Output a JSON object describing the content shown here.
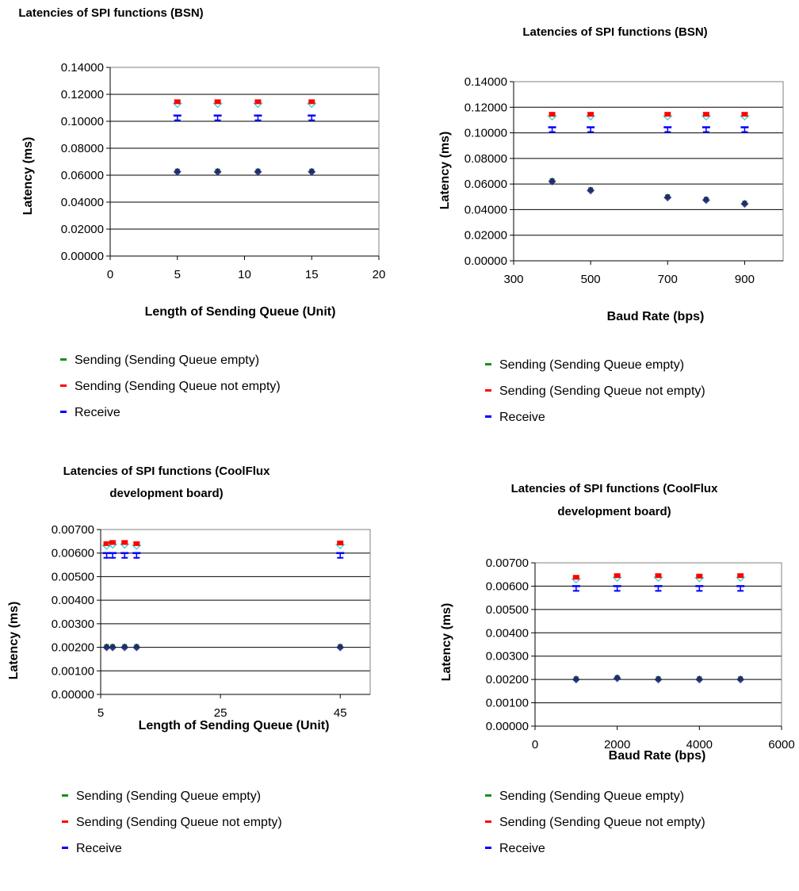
{
  "series_style": {
    "sending_empty": {
      "label": "Sending (Sending Queue empty)",
      "color": "#1a8f1a",
      "marker": "diamond"
    },
    "sending_not_empty": {
      "label": "Sending (Sending Queue not empty)",
      "color": "#ff0000",
      "marker": "square"
    },
    "receive": {
      "label": "Receive",
      "color": "#0000ff",
      "marker": "dash"
    },
    "error_bar_color": "#33cccc"
  },
  "chart_data": [
    {
      "type": "scatter",
      "title": "Latencies of SPI functions (BSN)",
      "xlabel": "Length of Sending Queue (Unit)",
      "ylabel": "Latency (ms)",
      "xlim": [
        0,
        20
      ],
      "xticks": [
        "0",
        "5",
        "10",
        "15",
        "20"
      ],
      "ylim": [
        0,
        0.14
      ],
      "yticks": [
        "0.00000",
        "0.02000",
        "0.04000",
        "0.06000",
        "0.08000",
        "0.10000",
        "0.12000",
        "0.14000"
      ],
      "grid": "horizontal",
      "legend": "bottom",
      "x": [
        5,
        8,
        11,
        15
      ],
      "series": [
        {
          "name": "Sending (Sending Queue empty)",
          "values": [
            0.0625,
            0.0625,
            0.0625,
            0.0625
          ]
        },
        {
          "name": "Sending (Sending Queue not empty)",
          "values": [
            0.1145,
            0.1145,
            0.1145,
            0.1145
          ]
        },
        {
          "name": "Receive",
          "values": [
            0.1025,
            0.1025,
            0.1025,
            0.1025
          ]
        }
      ]
    },
    {
      "type": "scatter",
      "title": "Latencies of SPI functions (BSN)",
      "xlabel": "Baud Rate (bps)",
      "ylabel": "Latency (ms)",
      "xlim": [
        300,
        1000
      ],
      "xticks": [
        "300",
        "500",
        "700",
        "900"
      ],
      "ylim": [
        0,
        0.14
      ],
      "yticks": [
        "0.00000",
        "0.02000",
        "0.04000",
        "0.06000",
        "0.08000",
        "0.10000",
        "0.12000",
        "0.14000"
      ],
      "grid": "horizontal",
      "legend": "bottom",
      "x": [
        400,
        500,
        700,
        800,
        900
      ],
      "series": [
        {
          "name": "Sending (Sending Queue empty)",
          "values": [
            0.062,
            0.055,
            0.0495,
            0.0475,
            0.0445
          ]
        },
        {
          "name": "Sending (Sending Queue not empty)",
          "values": [
            0.1145,
            0.1145,
            0.1145,
            0.1145,
            0.1145
          ]
        },
        {
          "name": "Receive",
          "values": [
            0.1025,
            0.1025,
            0.1025,
            0.1025,
            0.1025
          ]
        }
      ]
    },
    {
      "type": "scatter",
      "title": "Latencies of SPI functions (CoolFlux development board)",
      "xlabel": "Length of Sending Queue (Unit)",
      "ylabel": "Latency (ms)",
      "xlim": [
        5,
        50
      ],
      "xticks": [
        "5",
        "25",
        "45"
      ],
      "ylim": [
        0,
        0.007
      ],
      "yticks": [
        "0.00000",
        "0.00100",
        "0.00200",
        "0.00300",
        "0.00400",
        "0.00500",
        "0.00600",
        "0.00700"
      ],
      "grid": "horizontal",
      "legend": "bottom",
      "x": [
        6,
        7,
        9,
        11,
        45
      ],
      "series": [
        {
          "name": "Sending (Sending Queue empty)",
          "values": [
            0.002,
            0.002,
            0.002,
            0.002,
            0.002
          ]
        },
        {
          "name": "Sending (Sending Queue not empty)",
          "values": [
            0.0064,
            0.00645,
            0.00645,
            0.0064,
            0.00643
          ]
        },
        {
          "name": "Receive",
          "values": [
            0.0059,
            0.0059,
            0.0059,
            0.0059,
            0.0059
          ]
        }
      ]
    },
    {
      "type": "scatter",
      "title": "Latencies of SPI functions (CoolFlux development board)",
      "xlabel": "Baud Rate (bps)",
      "ylabel": "Latency (ms)",
      "xlim": [
        0,
        6000
      ],
      "xticks": [
        "0",
        "2000",
        "4000",
        "6000"
      ],
      "ylim": [
        0,
        0.007
      ],
      "yticks": [
        "0.00000",
        "0.00100",
        "0.00200",
        "0.00300",
        "0.00400",
        "0.00500",
        "0.00600",
        "0.00700"
      ],
      "grid": "horizontal",
      "legend": "bottom",
      "x": [
        1000,
        2000,
        3000,
        4000,
        5000
      ],
      "series": [
        {
          "name": "Sending (Sending Queue empty)",
          "values": [
            0.002,
            0.00205,
            0.002,
            0.002,
            0.002
          ]
        },
        {
          "name": "Sending (Sending Queue not empty)",
          "values": [
            0.00638,
            0.00645,
            0.00645,
            0.00643,
            0.00645
          ]
        },
        {
          "name": "Receive",
          "values": [
            0.0059,
            0.0059,
            0.0059,
            0.0059,
            0.0059
          ]
        }
      ]
    }
  ]
}
